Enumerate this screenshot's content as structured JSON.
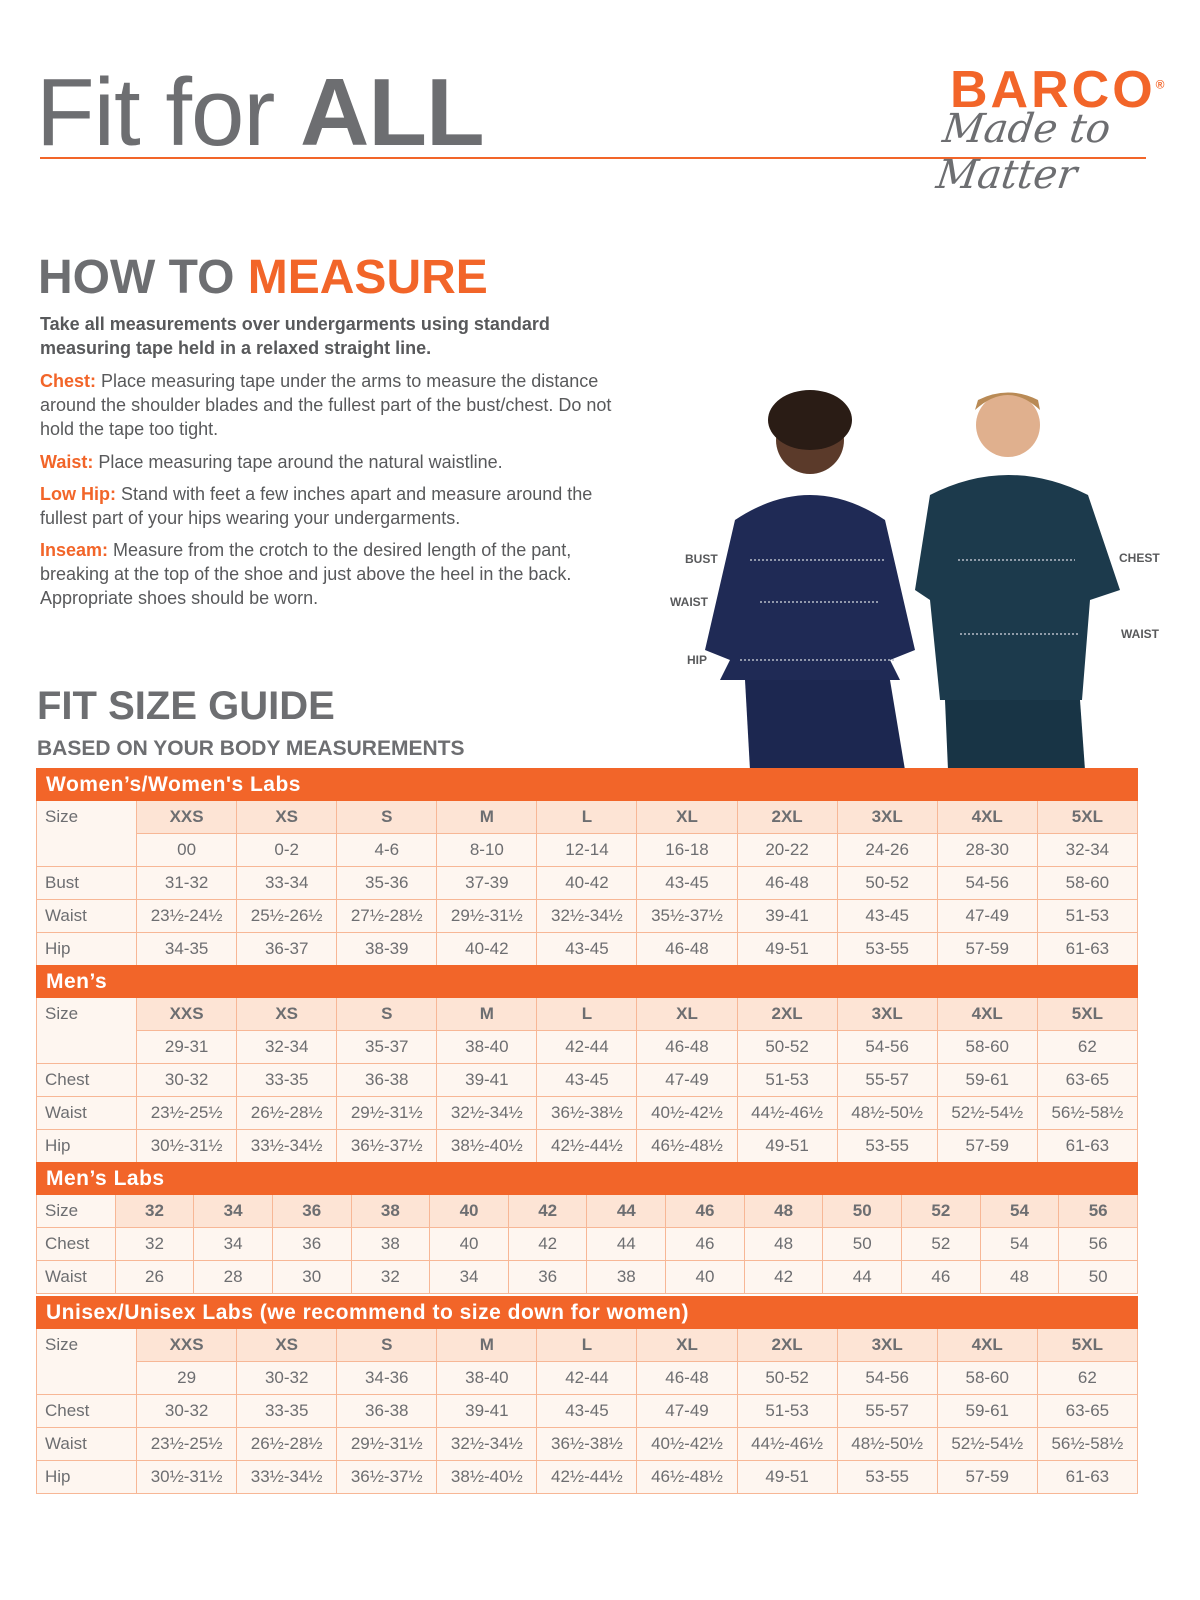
{
  "header": {
    "title_light": "Fit for ",
    "title_bold": "ALL",
    "brand": "BARCO",
    "brand_mark": "®",
    "tagline": "Made to Matter"
  },
  "measure": {
    "heading_gray": "HOW TO ",
    "heading_orange": "MEASURE",
    "intro": "Take all measurements over undergarments using standard measuring tape held in a relaxed straight line.",
    "items": [
      {
        "key": "Chest:",
        "text": "Place measuring tape under the arms to measure the distance around the shoulder blades and the fullest part of the bust/chest. Do not hold the tape too tight."
      },
      {
        "key": "Waist:",
        "text": "Place measuring tape around the natural waistline."
      },
      {
        "key": "Low Hip:",
        "text": "Stand with feet a few inches apart and measure around the fullest part of your hips wearing your undergarments."
      },
      {
        "key": "Inseam:",
        "text": "Measure from the crotch to the desired length of the pant, breaking at the top of the shoe and just above the heel in the back. Appropriate shoes should be worn."
      }
    ]
  },
  "figure_labels": {
    "bust": "BUST",
    "waist_w": "WAIST",
    "hip": "HIP",
    "chest": "CHEST",
    "waist_m": "WAIST"
  },
  "colors": {
    "accent": "#f26529",
    "size_cell": "#fde4d5",
    "cell": "#fef6f0",
    "text": "#58595b"
  },
  "fit": {
    "heading": "FIT SIZE GUIDE",
    "subheading": "BASED ON YOUR BODY MEASUREMENTS"
  },
  "tables": [
    {
      "title": "Women’s/Women's Labs",
      "sizes": [
        "XXS",
        "XS",
        "S",
        "M",
        "L",
        "XL",
        "2XL",
        "3XL",
        "4XL",
        "5XL"
      ],
      "numeric": [
        "00",
        "0-2",
        "4-6",
        "8-10",
        "12-14",
        "16-18",
        "20-22",
        "24-26",
        "28-30",
        "32-34"
      ],
      "rows": [
        {
          "label": "Bust",
          "values": [
            "31-32",
            "33-34",
            "35-36",
            "37-39",
            "40-42",
            "43-45",
            "46-48",
            "50-52",
            "54-56",
            "58-60"
          ]
        },
        {
          "label": "Waist",
          "values": [
            "23½-24½",
            "25½-26½",
            "27½-28½",
            "29½-31½",
            "32½-34½",
            "35½-37½",
            "39-41",
            "43-45",
            "47-49",
            "51-53"
          ]
        },
        {
          "label": "Hip",
          "values": [
            "34-35",
            "36-37",
            "38-39",
            "40-42",
            "43-45",
            "46-48",
            "49-51",
            "53-55",
            "57-59",
            "61-63"
          ]
        }
      ]
    },
    {
      "title": "Men’s",
      "sizes": [
        "XXS",
        "XS",
        "S",
        "M",
        "L",
        "XL",
        "2XL",
        "3XL",
        "4XL",
        "5XL"
      ],
      "numeric": [
        "29-31",
        "32-34",
        "35-37",
        "38-40",
        "42-44",
        "46-48",
        "50-52",
        "54-56",
        "58-60",
        "62"
      ],
      "rows": [
        {
          "label": "Chest",
          "values": [
            "30-32",
            "33-35",
            "36-38",
            "39-41",
            "43-45",
            "47-49",
            "51-53",
            "55-57",
            "59-61",
            "63-65"
          ]
        },
        {
          "label": "Waist",
          "values": [
            "23½-25½",
            "26½-28½",
            "29½-31½",
            "32½-34½",
            "36½-38½",
            "40½-42½",
            "44½-46½",
            "48½-50½",
            "52½-54½",
            "56½-58½"
          ]
        },
        {
          "label": "Hip",
          "values": [
            "30½-31½",
            "33½-34½",
            "36½-37½",
            "38½-40½",
            "42½-44½",
            "46½-48½",
            "49-51",
            "53-55",
            "57-59",
            "61-63"
          ]
        }
      ]
    },
    {
      "title": "Men’s Labs",
      "sizes": [
        "32",
        "34",
        "36",
        "38",
        "40",
        "42",
        "44",
        "46",
        "48",
        "50",
        "52",
        "54",
        "56"
      ],
      "rows": [
        {
          "label": "Chest",
          "values": [
            "32",
            "34",
            "36",
            "38",
            "40",
            "42",
            "44",
            "46",
            "48",
            "50",
            "52",
            "54",
            "56"
          ]
        },
        {
          "label": "Waist",
          "values": [
            "26",
            "28",
            "30",
            "32",
            "34",
            "36",
            "38",
            "40",
            "42",
            "44",
            "46",
            "48",
            "50"
          ]
        }
      ]
    },
    {
      "title": "Unisex/Unisex Labs (we recommend to size down for women)",
      "sizes": [
        "XXS",
        "XS",
        "S",
        "M",
        "L",
        "XL",
        "2XL",
        "3XL",
        "4XL",
        "5XL"
      ],
      "numeric": [
        "29",
        "30-32",
        "34-36",
        "38-40",
        "42-44",
        "46-48",
        "50-52",
        "54-56",
        "58-60",
        "62"
      ],
      "rows": [
        {
          "label": "Chest",
          "values": [
            "30-32",
            "33-35",
            "36-38",
            "39-41",
            "43-45",
            "47-49",
            "51-53",
            "55-57",
            "59-61",
            "63-65"
          ]
        },
        {
          "label": "Waist",
          "values": [
            "23½-25½",
            "26½-28½",
            "29½-31½",
            "32½-34½",
            "36½-38½",
            "40½-42½",
            "44½-46½",
            "48½-50½",
            "52½-54½",
            "56½-58½"
          ]
        },
        {
          "label": "Hip",
          "values": [
            "30½-31½",
            "33½-34½",
            "36½-37½",
            "38½-40½",
            "42½-44½",
            "46½-48½",
            "49-51",
            "53-55",
            "57-59",
            "61-63"
          ]
        }
      ]
    }
  ],
  "size_label": "Size"
}
